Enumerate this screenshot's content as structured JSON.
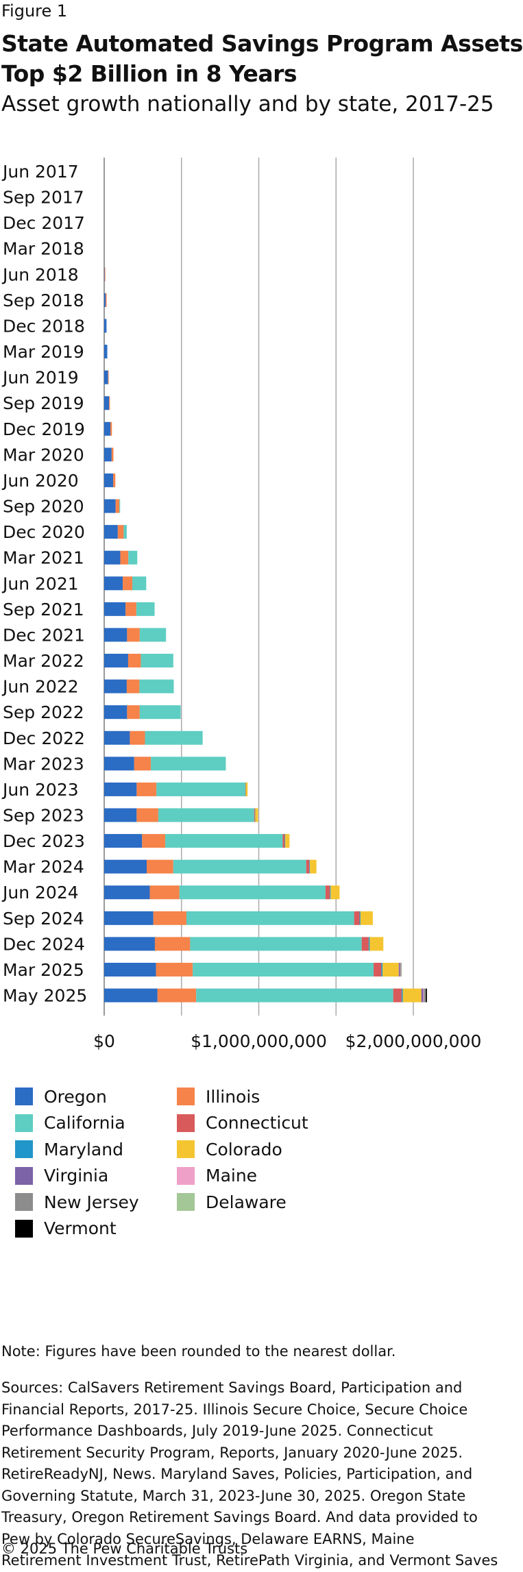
{
  "figure_label": "Figure 1",
  "title_line1": "State Automated Savings Program Assets",
  "title_line2": "Top $2 Billion in 8 Years",
  "subtitle": "Asset growth nationally and by state, 2017-25",
  "note": "Note: Figures have been rounded to the nearest dollar.",
  "sources_text": "Sources: CalSavers Retirement Savings Board, Participation and Financial Reports, 2017-25. Illinois Secure Choice, Secure Choice Performance Dashboards, July 2019-June 2025. Connecticut Retirement Security Program, Reports, January 2020-June 2025. RetireReadyNJ, News. Maryland Saves, Policies, Participation, and Governing Statute, March 31, 2023-June 30, 2025. Oregon State Treasury, Oregon Retirement Savings Board. And data provided to Pew by Colorado SecureSavings, Delaware EARNS, Maine Retirement Investment Trust, RetirePath Virginia, and Vermont Saves",
  "copyright": "© 2025 The Pew Charitable Trusts",
  "chart_data": {
    "type": "bar",
    "orientation": "horizontal",
    "stacked": true,
    "title": "State Automated Savings Program Assets Top $2 Billion in 8 Years",
    "subtitle": "Asset growth nationally and by state, 2017-25",
    "xlabel": "",
    "ylabel": "",
    "xlim": [
      0,
      2100000000
    ],
    "x_ticks": [
      0,
      1000000000,
      2000000000
    ],
    "x_tick_labels": [
      "$0",
      "$1,000,000,000",
      "$2,000,000,000"
    ],
    "grid": "vertical",
    "legend_position": "bottom",
    "categories": [
      "Jun 2017",
      "Sep 2017",
      "Dec 2017",
      "Mar 2018",
      "Jun 2018",
      "Sep 2018",
      "Dec 2018",
      "Mar 2019",
      "Jun 2019",
      "Sep 2019",
      "Dec 2019",
      "Mar 2020",
      "Jun 2020",
      "Sep 2020",
      "Dec 2020",
      "Mar 2021",
      "Jun 2021",
      "Sep 2021",
      "Dec 2021",
      "Mar 2022",
      "Jun 2022",
      "Sep 2022",
      "Dec 2022",
      "Mar 2023",
      "Jun 2023",
      "Sep 2023",
      "Dec 2023",
      "Mar 2024",
      "Jun 2024",
      "Sep 2024",
      "Dec 2024",
      "Mar 2025",
      "May 2025"
    ],
    "series": [
      {
        "name": "Oregon",
        "color": "#2b6cc4",
        "values": [
          0,
          0,
          0,
          0,
          3000000,
          10000000,
          15000000,
          20000000,
          25000000,
          32000000,
          40000000,
          48000000,
          58000000,
          74000000,
          88000000,
          104000000,
          120000000,
          138000000,
          148000000,
          155000000,
          146000000,
          148000000,
          166000000,
          194000000,
          210000000,
          210000000,
          245000000,
          275000000,
          295000000,
          318000000,
          328000000,
          335000000,
          345000000
        ]
      },
      {
        "name": "Illinois",
        "color": "#f5834a",
        "values": [
          0,
          0,
          0,
          0,
          4000000,
          6000000,
          0,
          0,
          4000000,
          5000000,
          10000000,
          12000000,
          14000000,
          24000000,
          38000000,
          52000000,
          62000000,
          70000000,
          82000000,
          82000000,
          82000000,
          82000000,
          98000000,
          108000000,
          128000000,
          140000000,
          150000000,
          172000000,
          192000000,
          214000000,
          228000000,
          238000000,
          250000000
        ]
      },
      {
        "name": "California",
        "color": "#5ecdc2",
        "values": [
          0,
          0,
          0,
          0,
          0,
          0,
          0,
          0,
          0,
          0,
          0,
          0,
          0,
          5000000,
          20000000,
          58000000,
          90000000,
          118000000,
          170000000,
          210000000,
          222000000,
          265000000,
          373000000,
          485000000,
          575000000,
          620000000,
          760000000,
          860000000,
          945000000,
          1085000000,
          1110000000,
          1170000000,
          1275000000
        ]
      },
      {
        "name": "Connecticut",
        "color": "#d95a5a",
        "values": [
          0,
          0,
          0,
          0,
          0,
          0,
          0,
          0,
          0,
          0,
          0,
          0,
          0,
          0,
          0,
          0,
          0,
          0,
          0,
          0,
          0,
          0,
          0,
          0,
          2000000,
          5000000,
          13000000,
          20000000,
          28000000,
          35000000,
          45000000,
          50000000,
          54000000
        ]
      },
      {
        "name": "Maryland",
        "color": "#2196c9",
        "values": [
          0,
          0,
          0,
          0,
          0,
          0,
          0,
          0,
          0,
          0,
          0,
          0,
          0,
          0,
          0,
          0,
          0,
          0,
          0,
          0,
          0,
          0,
          0,
          0,
          1000000,
          2000000,
          3000000,
          4000000,
          5000000,
          6000000,
          7000000,
          8000000,
          8000000
        ]
      },
      {
        "name": "Colorado",
        "color": "#f5c531",
        "values": [
          0,
          0,
          0,
          0,
          0,
          0,
          0,
          0,
          0,
          0,
          0,
          0,
          0,
          0,
          0,
          0,
          0,
          0,
          0,
          0,
          0,
          0,
          0,
          0,
          12000000,
          18000000,
          28000000,
          42000000,
          58000000,
          80000000,
          88000000,
          105000000,
          120000000
        ]
      },
      {
        "name": "Virginia",
        "color": "#7c62a6",
        "values": [
          0,
          0,
          0,
          0,
          0,
          0,
          0,
          0,
          0,
          0,
          0,
          0,
          0,
          0,
          0,
          0,
          0,
          0,
          0,
          0,
          0,
          0,
          0,
          0,
          0,
          0,
          0,
          0,
          0,
          0,
          0,
          8000000,
          12000000
        ]
      },
      {
        "name": "Maine",
        "color": "#efa0c8",
        "values": [
          0,
          0,
          0,
          0,
          0,
          0,
          0,
          0,
          0,
          0,
          0,
          0,
          0,
          0,
          0,
          0,
          0,
          0,
          0,
          0,
          0,
          0,
          0,
          0,
          0,
          0,
          0,
          0,
          0,
          0,
          0,
          3000000,
          4000000
        ]
      },
      {
        "name": "New Jersey",
        "color": "#8c8c8c",
        "values": [
          0,
          0,
          0,
          0,
          0,
          0,
          0,
          0,
          0,
          0,
          0,
          0,
          0,
          0,
          0,
          0,
          0,
          0,
          0,
          0,
          0,
          0,
          0,
          0,
          0,
          0,
          0,
          0,
          0,
          0,
          0,
          5000000,
          10000000
        ]
      },
      {
        "name": "Delaware",
        "color": "#a3c796",
        "values": [
          0,
          0,
          0,
          0,
          0,
          0,
          0,
          0,
          0,
          0,
          0,
          0,
          0,
          0,
          0,
          0,
          0,
          0,
          0,
          0,
          0,
          0,
          0,
          0,
          0,
          0,
          0,
          0,
          0,
          0,
          0,
          1000000,
          2000000
        ]
      },
      {
        "name": "Vermont",
        "color": "#000000",
        "values": [
          0,
          0,
          0,
          0,
          0,
          0,
          0,
          0,
          0,
          0,
          0,
          0,
          0,
          0,
          0,
          0,
          0,
          0,
          0,
          0,
          0,
          0,
          0,
          0,
          0,
          0,
          0,
          0,
          0,
          0,
          0,
          0,
          8000000
        ]
      }
    ]
  }
}
